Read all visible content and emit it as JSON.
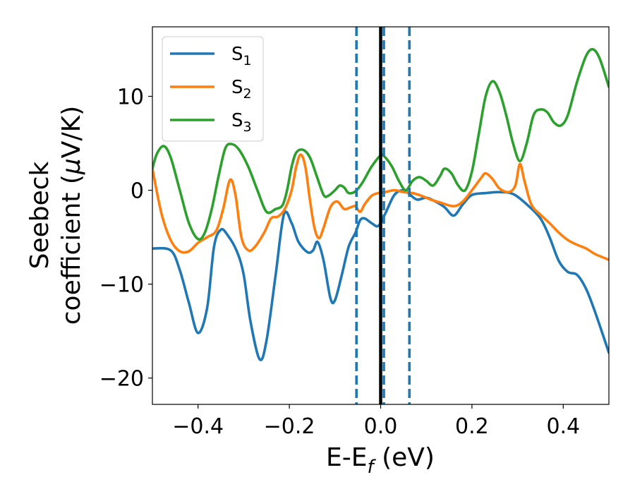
{
  "chart_data": {
    "type": "line",
    "xlabel": {
      "main": "E-E",
      "sub": "f",
      "unit": " (eV)"
    },
    "ylabel": {
      "line1": "Seebeck",
      "line2_prefix": "coefficient  (",
      "mu": "μ",
      "line2_suffix": "V/K)"
    },
    "xlim": [
      -0.5,
      0.5
    ],
    "ylim": [
      -22.8,
      17.4
    ],
    "x_ticks": [
      -0.4,
      -0.2,
      0.0,
      0.2,
      0.4
    ],
    "x_tick_labels": [
      "−0.4",
      "−0.2",
      "0.0",
      "0.2",
      "0.4"
    ],
    "y_ticks": [
      -20,
      -10,
      0,
      10
    ],
    "y_tick_labels": [
      "−20",
      "−10",
      "0",
      "10"
    ],
    "grid": false,
    "legend_position": "top-left",
    "vertical_lines": [
      {
        "x": -0.053,
        "style": "dashed",
        "color": "#1f77b4"
      },
      {
        "x": 0.0,
        "style": "solid",
        "color": "#000000"
      },
      {
        "x": 0.007,
        "style": "dashed",
        "color": "#1f77b4"
      },
      {
        "x": 0.063,
        "style": "dashed",
        "color": "#1f77b4"
      }
    ],
    "series": [
      {
        "name": "S",
        "sub": "1",
        "color": "#1f77b4",
        "points": [
          [
            -0.5,
            -6.2
          ],
          [
            -0.46,
            -6.4
          ],
          [
            -0.44,
            -8.5
          ],
          [
            -0.42,
            -12.0
          ],
          [
            -0.4,
            -15.2
          ],
          [
            -0.38,
            -12.5
          ],
          [
            -0.365,
            -6.0
          ],
          [
            -0.35,
            -4.2
          ],
          [
            -0.335,
            -4.8
          ],
          [
            -0.315,
            -6.5
          ],
          [
            -0.3,
            -9.0
          ],
          [
            -0.285,
            -14.0
          ],
          [
            -0.265,
            -18.0
          ],
          [
            -0.25,
            -16.0
          ],
          [
            -0.23,
            -9.0
          ],
          [
            -0.212,
            -2.6
          ],
          [
            -0.195,
            -3.5
          ],
          [
            -0.18,
            -5.5
          ],
          [
            -0.16,
            -6.6
          ],
          [
            -0.148,
            -6.4
          ],
          [
            -0.138,
            -5.5
          ],
          [
            -0.125,
            -7.5
          ],
          [
            -0.11,
            -11.5
          ],
          [
            -0.1,
            -11.7
          ],
          [
            -0.085,
            -9.0
          ],
          [
            -0.07,
            -6.0
          ],
          [
            -0.055,
            -4.5
          ],
          [
            -0.045,
            -3.2
          ],
          [
            -0.035,
            -3.0
          ],
          [
            -0.02,
            -3.5
          ],
          [
            -0.005,
            -3.8
          ],
          [
            0.01,
            -2.5
          ],
          [
            0.03,
            -0.5
          ],
          [
            0.05,
            0.0
          ],
          [
            0.065,
            -0.5
          ],
          [
            0.08,
            -1.0
          ],
          [
            0.1,
            -0.8
          ],
          [
            0.12,
            -1.2
          ],
          [
            0.14,
            -1.8
          ],
          [
            0.16,
            -2.7
          ],
          [
            0.18,
            -1.5
          ],
          [
            0.2,
            -0.5
          ],
          [
            0.23,
            -0.3
          ],
          [
            0.26,
            -0.2
          ],
          [
            0.29,
            -0.4
          ],
          [
            0.32,
            -1.5
          ],
          [
            0.35,
            -3.0
          ],
          [
            0.37,
            -5.0
          ],
          [
            0.39,
            -7.5
          ],
          [
            0.41,
            -8.7
          ],
          [
            0.43,
            -9.0
          ],
          [
            0.45,
            -10.5
          ],
          [
            0.47,
            -13.0
          ],
          [
            0.5,
            -17.3
          ]
        ]
      },
      {
        "name": "S",
        "sub": "2",
        "color": "#ff7f0e",
        "points": [
          [
            -0.5,
            2.3
          ],
          [
            -0.48,
            -2.5
          ],
          [
            -0.46,
            -5.3
          ],
          [
            -0.44,
            -6.5
          ],
          [
            -0.42,
            -6.5
          ],
          [
            -0.4,
            -5.6
          ],
          [
            -0.38,
            -5.0
          ],
          [
            -0.36,
            -4.3
          ],
          [
            -0.345,
            -2.0
          ],
          [
            -0.33,
            1.1
          ],
          [
            -0.318,
            -0.5
          ],
          [
            -0.305,
            -5.0
          ],
          [
            -0.29,
            -6.4
          ],
          [
            -0.275,
            -6.0
          ],
          [
            -0.255,
            -4.5
          ],
          [
            -0.24,
            -3.0
          ],
          [
            -0.225,
            -2.8
          ],
          [
            -0.21,
            -2.0
          ],
          [
            -0.195,
            0.0
          ],
          [
            -0.185,
            2.5
          ],
          [
            -0.175,
            3.8
          ],
          [
            -0.165,
            2.5
          ],
          [
            -0.155,
            -1.0
          ],
          [
            -0.145,
            -4.0
          ],
          [
            -0.135,
            -5.1
          ],
          [
            -0.125,
            -4.0
          ],
          [
            -0.11,
            -1.8
          ],
          [
            -0.095,
            -1.2
          ],
          [
            -0.08,
            -2.0
          ],
          [
            -0.065,
            -1.8
          ],
          [
            -0.055,
            -1.7
          ],
          [
            -0.045,
            -2.3
          ],
          [
            -0.035,
            -1.5
          ],
          [
            -0.02,
            -0.6
          ],
          [
            -0.005,
            -0.3
          ],
          [
            0.01,
            -0.2
          ],
          [
            0.03,
            0.0
          ],
          [
            0.05,
            -0.2
          ],
          [
            0.07,
            -0.3
          ],
          [
            0.09,
            -0.6
          ],
          [
            0.11,
            -1.0
          ],
          [
            0.13,
            -1.3
          ],
          [
            0.16,
            -1.7
          ],
          [
            0.18,
            -1.2
          ],
          [
            0.2,
            0.0
          ],
          [
            0.22,
            1.3
          ],
          [
            0.23,
            1.8
          ],
          [
            0.245,
            1.2
          ],
          [
            0.26,
            0.2
          ],
          [
            0.28,
            -0.2
          ],
          [
            0.295,
            0.5
          ],
          [
            0.305,
            2.8
          ],
          [
            0.315,
            1.0
          ],
          [
            0.33,
            -1.5
          ],
          [
            0.35,
            -2.6
          ],
          [
            0.37,
            -3.5
          ],
          [
            0.39,
            -4.5
          ],
          [
            0.41,
            -5.3
          ],
          [
            0.43,
            -5.8
          ],
          [
            0.45,
            -6.2
          ],
          [
            0.47,
            -6.8
          ],
          [
            0.5,
            -7.4
          ]
        ]
      },
      {
        "name": "S",
        "sub": "3",
        "color": "#2ca02c",
        "points": [
          [
            -0.5,
            2.3
          ],
          [
            -0.49,
            3.9
          ],
          [
            -0.475,
            4.7
          ],
          [
            -0.46,
            3.5
          ],
          [
            -0.44,
            0.0
          ],
          [
            -0.42,
            -3.5
          ],
          [
            -0.4,
            -5.2
          ],
          [
            -0.385,
            -4.5
          ],
          [
            -0.37,
            -2.0
          ],
          [
            -0.355,
            1.5
          ],
          [
            -0.34,
            4.5
          ],
          [
            -0.325,
            4.9
          ],
          [
            -0.31,
            4.3
          ],
          [
            -0.29,
            2.5
          ],
          [
            -0.27,
            0.0
          ],
          [
            -0.25,
            -2.3
          ],
          [
            -0.23,
            -2.0
          ],
          [
            -0.215,
            -1.6
          ],
          [
            -0.205,
            0.0
          ],
          [
            -0.195,
            2.5
          ],
          [
            -0.185,
            4.0
          ],
          [
            -0.17,
            4.3
          ],
          [
            -0.155,
            3.5
          ],
          [
            -0.14,
            1.5
          ],
          [
            -0.125,
            -0.5
          ],
          [
            -0.115,
            -0.6
          ],
          [
            -0.1,
            0.0
          ],
          [
            -0.09,
            0.5
          ],
          [
            -0.08,
            0.3
          ],
          [
            -0.07,
            -0.3
          ],
          [
            -0.055,
            -0.1
          ],
          [
            -0.04,
            0.8
          ],
          [
            -0.02,
            2.5
          ],
          [
            0.0,
            3.7
          ],
          [
            0.01,
            3.5
          ],
          [
            0.025,
            2.5
          ],
          [
            0.04,
            1.0
          ],
          [
            0.055,
            0.0
          ],
          [
            0.07,
            1.0
          ],
          [
            0.085,
            1.4
          ],
          [
            0.1,
            1.0
          ],
          [
            0.115,
            0.5
          ],
          [
            0.13,
            1.5
          ],
          [
            0.14,
            2.3
          ],
          [
            0.155,
            1.8
          ],
          [
            0.17,
            0.5
          ],
          [
            0.185,
            0.0
          ],
          [
            0.2,
            2.0
          ],
          [
            0.215,
            6.0
          ],
          [
            0.23,
            10.0
          ],
          [
            0.245,
            11.6
          ],
          [
            0.26,
            10.5
          ],
          [
            0.275,
            8.0
          ],
          [
            0.29,
            5.0
          ],
          [
            0.305,
            3.1
          ],
          [
            0.32,
            5.0
          ],
          [
            0.335,
            8.0
          ],
          [
            0.35,
            8.6
          ],
          [
            0.365,
            8.3
          ],
          [
            0.38,
            7.2
          ],
          [
            0.395,
            6.9
          ],
          [
            0.41,
            8.0
          ],
          [
            0.43,
            11.5
          ],
          [
            0.45,
            14.3
          ],
          [
            0.465,
            15.0
          ],
          [
            0.48,
            14.0
          ],
          [
            0.5,
            11.0
          ]
        ]
      }
    ]
  }
}
